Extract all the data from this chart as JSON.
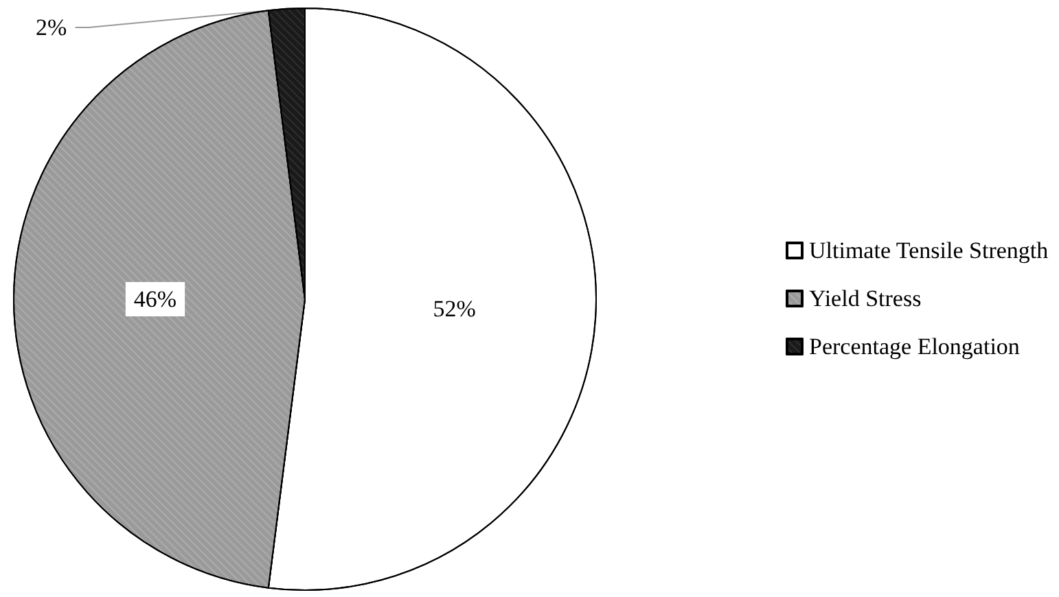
{
  "chart_data": {
    "type": "pie",
    "categories": [
      "Ultimate Tensile Strength",
      "Yield Stress",
      "Percentage Elongation"
    ],
    "values": [
      52,
      46,
      2
    ],
    "colors": [
      "#ffffff",
      "#9a9a9a",
      "#1a1a1a"
    ],
    "value_labels": [
      "52%",
      "46%",
      "2%"
    ],
    "legend": "right"
  }
}
